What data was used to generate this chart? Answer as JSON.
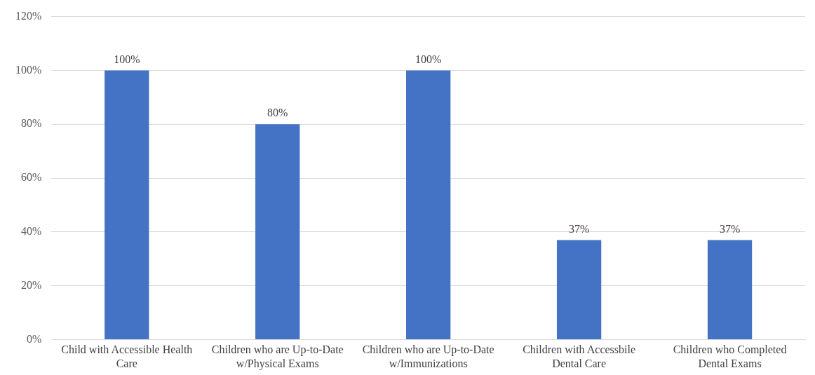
{
  "chart_data": {
    "type": "bar",
    "categories": [
      "Child with Accessible Health Care",
      "Children who are Up-to-Date w/Physical Exams",
      "Children who are Up-to-Date w/Immunizations",
      "Children with Accessbile Dental Care",
      "Children who Completed Dental Exams"
    ],
    "values": [
      100,
      80,
      100,
      37,
      37
    ],
    "value_labels": [
      "100%",
      "80%",
      "100%",
      "37%",
      "37%"
    ],
    "color": "#4472c4",
    "ylim": [
      0,
      120
    ],
    "yticks": [
      {
        "value": 0,
        "label": "0%"
      },
      {
        "value": 20,
        "label": "20%"
      },
      {
        "value": 40,
        "label": "40%"
      },
      {
        "value": 60,
        "label": "60%"
      },
      {
        "value": 80,
        "label": "80%"
      },
      {
        "value": 100,
        "label": "100%"
      },
      {
        "value": 120,
        "label": "120%"
      }
    ],
    "grid": "y",
    "legend": false
  }
}
